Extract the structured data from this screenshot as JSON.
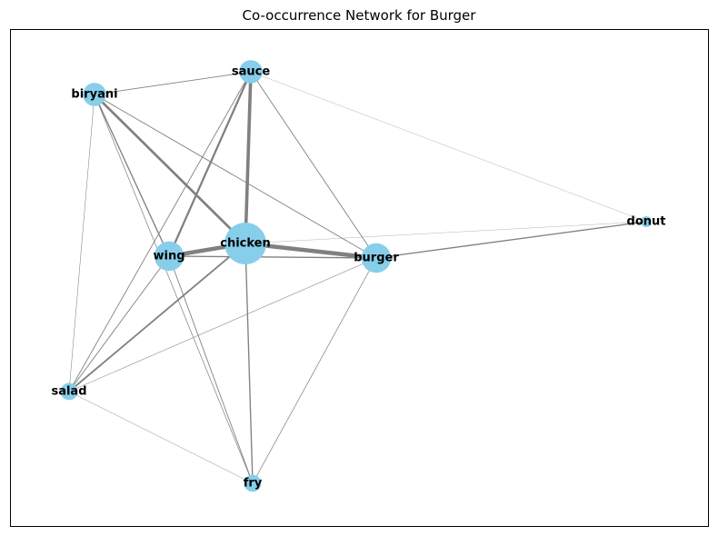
{
  "title": "Co-occurrence Network for Burger",
  "colors": {
    "node": "#87ceeb",
    "edge": "#808080",
    "label": "#000000"
  },
  "nodes": [
    {
      "id": "sauce",
      "label": "sauce",
      "weight": 2
    },
    {
      "id": "biryani",
      "label": "biryani",
      "weight": 2
    },
    {
      "id": "chicken",
      "label": "chicken",
      "weight": 5
    },
    {
      "id": "wing",
      "label": "wing",
      "weight": 3
    },
    {
      "id": "burger",
      "label": "burger",
      "weight": 3
    },
    {
      "id": "donut",
      "label": "donut",
      "weight": 0
    },
    {
      "id": "salad",
      "label": "salad",
      "weight": 1
    },
    {
      "id": "fry",
      "label": "fry",
      "weight": 1
    }
  ],
  "edges": [
    {
      "source": "chicken",
      "target": "burger",
      "weight": 5
    },
    {
      "source": "chicken",
      "target": "wing",
      "weight": 5
    },
    {
      "source": "sauce",
      "target": "chicken",
      "weight": 4
    },
    {
      "source": "biryani",
      "target": "chicken",
      "weight": 3
    },
    {
      "source": "sauce",
      "target": "wing",
      "weight": 2.5
    },
    {
      "source": "wing",
      "target": "burger",
      "weight": 1.5
    },
    {
      "source": "chicken",
      "target": "salad",
      "weight": 2
    },
    {
      "source": "burger",
      "target": "donut",
      "weight": 1.5
    },
    {
      "source": "biryani",
      "target": "wing",
      "weight": 1.5
    },
    {
      "source": "sauce",
      "target": "burger",
      "weight": 1
    },
    {
      "source": "sauce",
      "target": "biryani",
      "weight": 1
    },
    {
      "source": "wing",
      "target": "salad",
      "weight": 1
    },
    {
      "source": "wing",
      "target": "fry",
      "weight": 1
    },
    {
      "source": "chicken",
      "target": "fry",
      "weight": 1.5
    },
    {
      "source": "sauce",
      "target": "salad",
      "weight": 1
    },
    {
      "source": "biryani",
      "target": "burger",
      "weight": 1
    },
    {
      "source": "burger",
      "target": "fry",
      "weight": 0.8
    },
    {
      "source": "biryani",
      "target": "fry",
      "weight": 0.8
    },
    {
      "source": "biryani",
      "target": "salad",
      "weight": 0.6
    },
    {
      "source": "salad",
      "target": "burger",
      "weight": 0.6
    },
    {
      "source": "salad",
      "target": "fry",
      "weight": 0.5
    },
    {
      "source": "chicken",
      "target": "donut",
      "weight": 0.3
    },
    {
      "source": "sauce",
      "target": "donut",
      "weight": 0.2
    }
  ]
}
